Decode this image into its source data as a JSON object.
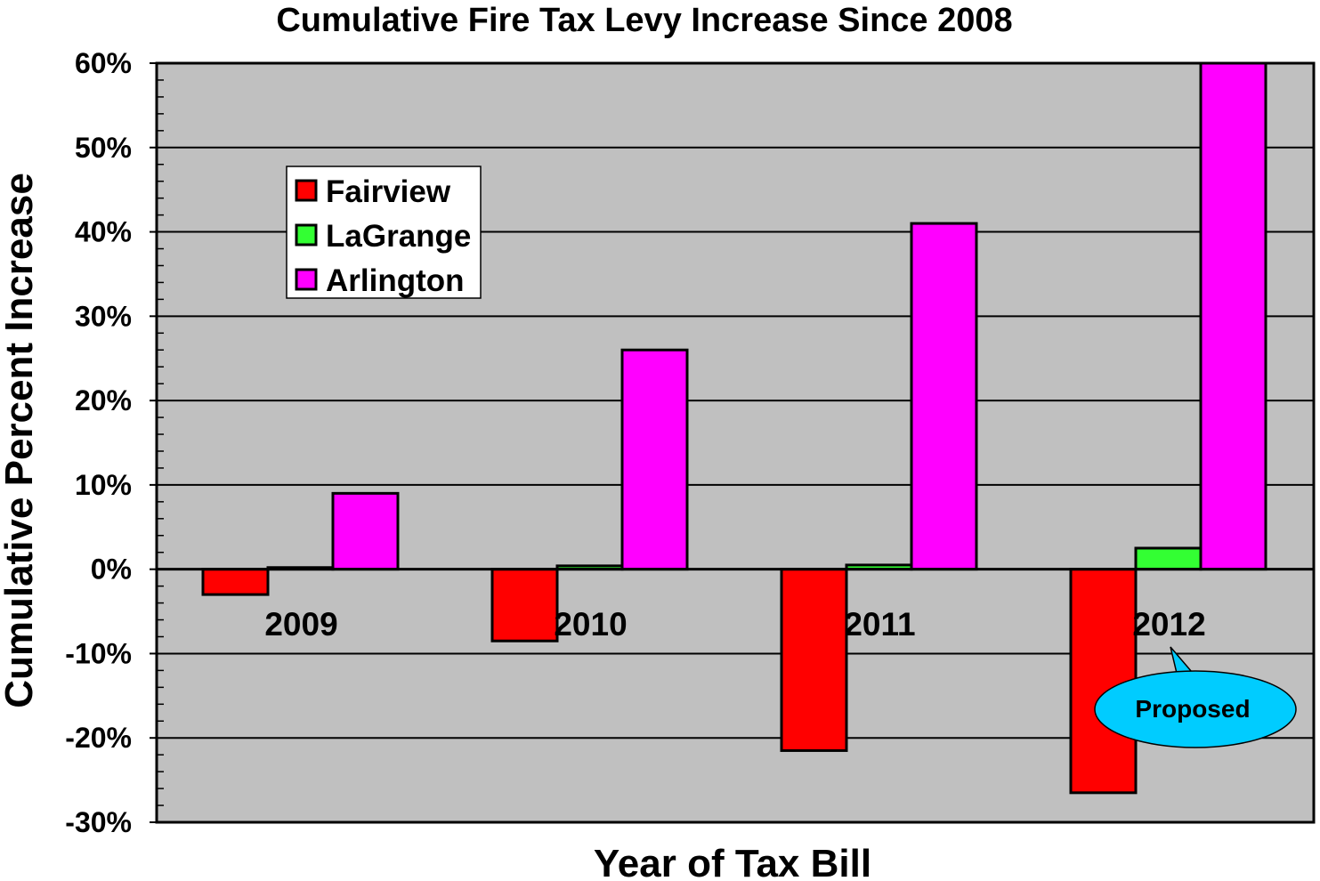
{
  "chart_data": {
    "type": "bar",
    "title": "Cumulative Fire Tax Levy Increase Since 2008",
    "xlabel": "Year of Tax Bill",
    "ylabel": "Cumulative Percent Increase",
    "categories": [
      "2009",
      "2010",
      "2011",
      "2012"
    ],
    "series": [
      {
        "name": "Fairview",
        "color": "#ff0000",
        "values": [
          -3,
          -8.5,
          -21.5,
          -26.5
        ]
      },
      {
        "name": "LaGrange",
        "color": "#33ff33",
        "values": [
          0.2,
          0.4,
          0.5,
          2.5
        ]
      },
      {
        "name": "Arlington",
        "color": "#ff00ff",
        "values": [
          9,
          26,
          41,
          60
        ]
      }
    ],
    "ylim": [
      -30,
      60
    ],
    "yticks": [
      60,
      50,
      40,
      30,
      20,
      10,
      0,
      -10,
      -20,
      -30
    ],
    "ytick_labels": [
      "60%",
      "50%",
      "40%",
      "30%",
      "20%",
      "10%",
      "0%",
      "-10%",
      "-20%",
      "-30%"
    ],
    "grid": true,
    "plot_background": "#c0c0c0",
    "legend_position": "top-left",
    "annotation": {
      "text": "Proposed",
      "category": "2012",
      "color": "#00ccff"
    }
  }
}
